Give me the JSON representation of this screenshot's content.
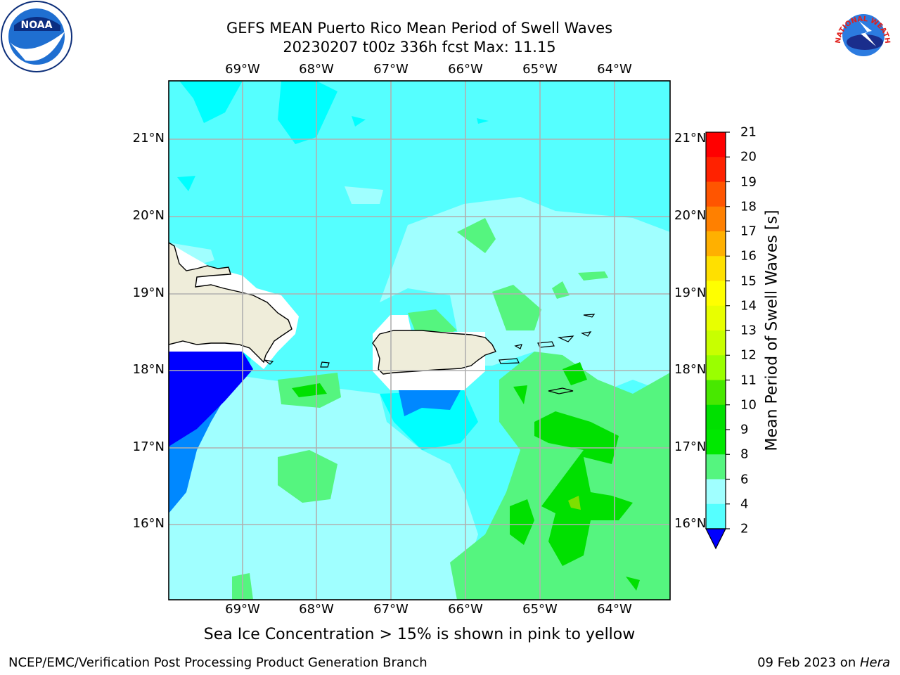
{
  "title": {
    "line1": "GEFS MEAN Puerto Rico Mean Period of Swell Waves",
    "line2": "20230207 t00z 336h fcst   Max: 11.15"
  },
  "map": {
    "lon_ticks": [
      "69°W",
      "68°W",
      "67°W",
      "66°W",
      "65°W",
      "64°W"
    ],
    "lat_ticks": [
      "21°N",
      "20°N",
      "19°N",
      "18°N",
      "17°N",
      "16°N"
    ],
    "background_color": "#55ffff",
    "land_color": "#efedda"
  },
  "colorbar": {
    "label": "Mean Period of Swell Waves [s]",
    "ticks": [
      "21",
      "20",
      "19",
      "18",
      "17",
      "16",
      "15",
      "14",
      "13",
      "12",
      "11",
      "10",
      "9",
      "8",
      "6",
      "4",
      "2"
    ],
    "colors": [
      "#ff0000",
      "#ff2200",
      "#ff5500",
      "#ff8000",
      "#ffb000",
      "#ffe000",
      "#ffff00",
      "#e8ff00",
      "#c8ff00",
      "#9aff00",
      "#48e800",
      "#00e000",
      "#00e800",
      "#55f57f",
      "#a0ffff",
      "#55ffff",
      "#00ffff",
      "#0088ff",
      "#0000ff"
    ]
  },
  "subtitle": "Sea Ice Concentration > 15% is shown in pink to yellow",
  "footer": {
    "left": "NCEP/EMC/Verification Post Processing Product Generation Branch",
    "date": "09 Feb 2023 on ",
    "host": "Hera"
  },
  "logos": {
    "noaa_text": "NOAA",
    "nws_text": "NATIONAL WEATHER SERVICE"
  }
}
